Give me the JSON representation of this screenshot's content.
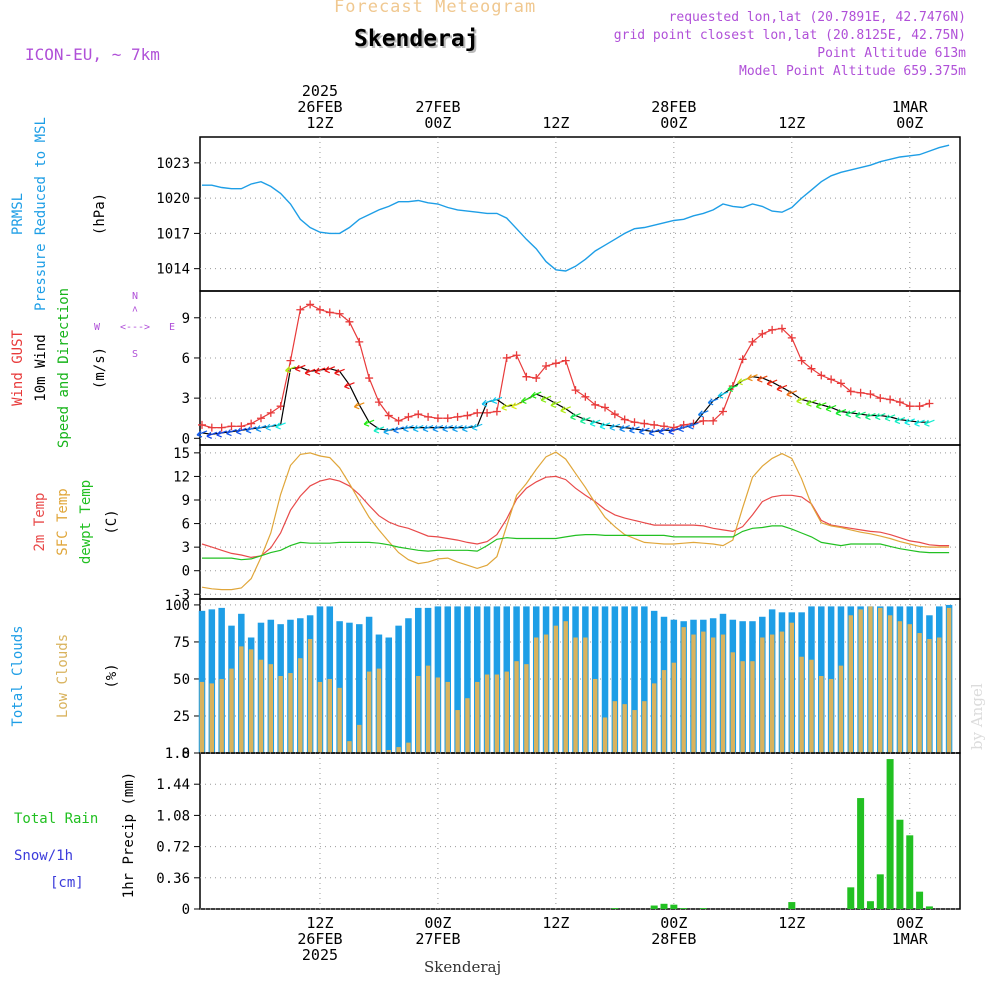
{
  "header": {
    "app_title": "Forecast Meteogram",
    "location": "Skenderaj",
    "model": "ICON-EU, ~ 7km",
    "requested": "requested lon,lat (20.7891E, 42.7476N)",
    "gridpoint": "grid point closest lon,lat (20.8125E, 42.75N)",
    "point_alt": "Point Altitude 613m",
    "model_alt": "Model Point Altitude 659.375m",
    "footer_location": "Skenderaj",
    "credit": "by Angel"
  },
  "colors": {
    "pressure": "#1e9ee6",
    "gust": "#e83a3a",
    "wind10m": "#000000",
    "wind_label": "#17b41a",
    "temp2m": "#e84a4a",
    "sfc": "#e0a63a",
    "dewpt": "#22c022",
    "total_clouds": "#1e9ee6",
    "low_clouds": "#d9b35e",
    "rain": "#22c022",
    "snow": "#3b3bdb",
    "header_purple": "#b050d8",
    "header_orange": "#f0c890",
    "compass": "#b050d8"
  },
  "time_axis": {
    "top_labels": [
      {
        "t": 12,
        "lines": [
          "2025",
          "26FEB",
          "12Z"
        ]
      },
      {
        "t": 24,
        "lines": [
          "27FEB",
          "00Z"
        ]
      },
      {
        "t": 36,
        "lines": [
          "12Z"
        ]
      },
      {
        "t": 48,
        "lines": [
          "28FEB",
          "00Z"
        ]
      },
      {
        "t": 60,
        "lines": [
          "12Z"
        ]
      },
      {
        "t": 72,
        "lines": [
          "1MAR",
          "00Z"
        ]
      }
    ],
    "bottom_labels": [
      {
        "t": 12,
        "lines": [
          "12Z",
          "26FEB",
          "2025"
        ]
      },
      {
        "t": 24,
        "lines": [
          "00Z",
          "27FEB"
        ]
      },
      {
        "t": 36,
        "lines": [
          "12Z"
        ]
      },
      {
        "t": 48,
        "lines": [
          "00Z",
          "28FEB"
        ]
      },
      {
        "t": 60,
        "lines": [
          "12Z"
        ]
      },
      {
        "t": 72,
        "lines": [
          "00Z",
          "1MAR"
        ]
      }
    ]
  },
  "chart_data": [
    {
      "type": "line",
      "panel": "pressure",
      "ylabel_lines": [
        "PRMSL",
        "Pressure Reduced to MSL",
        "(hPa)"
      ],
      "yticks": [
        1014,
        1017,
        1020,
        1023
      ],
      "ylim": [
        1012.1,
        1025.2
      ],
      "x_hours": [
        0,
        1,
        2,
        3,
        4,
        5,
        6,
        7,
        8,
        9,
        10,
        11,
        12,
        13,
        14,
        15,
        16,
        17,
        18,
        19,
        20,
        21,
        22,
        23,
        24,
        25,
        26,
        27,
        28,
        29,
        30,
        31,
        32,
        33,
        34,
        35,
        36,
        37,
        38,
        39,
        40,
        41,
        42,
        43,
        44,
        45,
        46,
        47,
        48,
        49,
        50,
        51,
        52,
        53,
        54,
        55,
        56,
        57,
        58,
        59,
        60,
        61,
        62,
        63,
        64,
        65,
        66,
        67,
        68,
        69,
        70,
        71,
        72,
        73,
        74,
        75,
        76
      ],
      "series": [
        {
          "values": [
            1021.1,
            1021.1,
            1020.9,
            1020.8,
            1020.8,
            1021.2,
            1021.4,
            1021.0,
            1020.4,
            1019.5,
            1018.2,
            1017.5,
            1017.1,
            1017.0,
            1017.0,
            1017.5,
            1018.2,
            1018.6,
            1019.0,
            1019.3,
            1019.7,
            1019.7,
            1019.8,
            1019.6,
            1019.5,
            1019.2,
            1019.0,
            1018.9,
            1018.8,
            1018.7,
            1018.7,
            1018.3,
            1017.4,
            1016.5,
            1015.7,
            1014.6,
            1013.9,
            1013.8,
            1014.2,
            1014.8,
            1015.5,
            1016.0,
            1016.5,
            1017.0,
            1017.4,
            1017.5,
            1017.7,
            1017.9,
            1018.1,
            1018.2,
            1018.5,
            1018.7,
            1019.0,
            1019.5,
            1019.3,
            1019.2,
            1019.5,
            1019.3,
            1018.9,
            1018.8,
            1019.2,
            1020.0,
            1020.7,
            1021.4,
            1021.9,
            1022.2,
            1022.4,
            1022.6,
            1022.8,
            1023.1,
            1023.3,
            1023.5,
            1023.6,
            1023.7,
            1024.0,
            1024.3,
            1024.5
          ]
        }
      ]
    },
    {
      "type": "line",
      "panel": "wind",
      "ylabel_lines": [
        "Wind GUST",
        "10m Wind",
        "Speed and Direction",
        "(m/s)"
      ],
      "compass": {
        "n": "N",
        "s": "S",
        "e": "E",
        "w": "W"
      },
      "yticks": [
        0,
        3,
        6,
        9
      ],
      "ylim": [
        -0.5,
        11.0
      ],
      "x_hours": [
        0,
        1,
        2,
        3,
        4,
        5,
        6,
        7,
        8,
        9,
        10,
        11,
        12,
        13,
        14,
        15,
        16,
        17,
        18,
        19,
        20,
        21,
        22,
        23,
        24,
        25,
        26,
        27,
        28,
        29,
        30,
        31,
        32,
        33,
        34,
        35,
        36,
        37,
        38,
        39,
        40,
        41,
        42,
        43,
        44,
        45,
        46,
        47,
        48,
        49,
        50,
        51,
        52,
        53,
        54,
        55,
        56,
        57,
        58,
        59,
        60,
        61,
        62,
        63,
        64,
        65,
        66,
        67,
        68,
        69,
        70,
        71,
        72,
        73,
        74,
        75,
        76
      ],
      "series": [
        {
          "name": "Wind GUST",
          "marker": "+",
          "values": [
            1.0,
            0.8,
            0.8,
            0.9,
            0.9,
            1.1,
            1.5,
            1.9,
            2.4,
            5.8,
            9.6,
            10.0,
            9.6,
            9.4,
            9.3,
            8.7,
            7.2,
            4.5,
            2.7,
            1.7,
            1.3,
            1.6,
            1.8,
            1.6,
            1.5,
            1.5,
            1.6,
            1.7,
            1.9,
            1.9,
            2.0,
            6.0,
            6.2,
            4.6,
            4.5,
            5.4,
            5.6,
            5.8,
            3.6,
            3.1,
            2.5,
            2.3,
            1.8,
            1.4,
            1.2,
            1.1,
            1.0,
            0.9,
            0.8,
            1.0,
            1.1,
            1.3,
            1.3,
            2.0,
            3.9,
            5.9,
            7.2,
            7.8,
            8.1,
            8.2,
            7.5,
            5.8,
            5.2,
            4.7,
            4.4,
            4.1,
            3.5,
            3.4,
            3.3,
            3.0,
            2.9,
            2.7,
            2.4,
            2.4,
            2.6
          ]
        },
        {
          "name": "10m Wind",
          "values": [
            0.4,
            0.3,
            0.4,
            0.5,
            0.6,
            0.7,
            0.8,
            0.9,
            1.0,
            5.2,
            5.3,
            5.0,
            5.1,
            5.2,
            5.0,
            4.0,
            2.5,
            1.2,
            0.7,
            0.6,
            0.7,
            0.8,
            0.8,
            0.8,
            0.8,
            0.8,
            0.8,
            0.8,
            0.9,
            2.7,
            2.9,
            2.4,
            2.5,
            2.9,
            3.3,
            3.0,
            2.6,
            2.2,
            1.7,
            1.4,
            1.2,
            1.0,
            0.9,
            0.8,
            0.7,
            0.6,
            0.5,
            0.6,
            0.6,
            0.8,
            1.0,
            1.9,
            2.8,
            3.3,
            3.8,
            4.3,
            4.6,
            4.5,
            4.2,
            3.8,
            3.4,
            2.9,
            2.7,
            2.5,
            2.3,
            2.0,
            1.9,
            1.8,
            1.7,
            1.7,
            1.6,
            1.4,
            1.3,
            1.2,
            1.2
          ]
        }
      ]
    },
    {
      "type": "line",
      "panel": "temperature",
      "ylabel_lines": [
        "2m Temp",
        "SFC Temp",
        "dewpt Temp",
        "(C)"
      ],
      "yticks": [
        -3,
        0,
        3,
        6,
        9,
        12,
        15
      ],
      "ylim": [
        -3.6,
        16.0
      ],
      "x_hours": [
        0,
        1,
        2,
        3,
        4,
        5,
        6,
        7,
        8,
        9,
        10,
        11,
        12,
        13,
        14,
        15,
        16,
        17,
        18,
        19,
        20,
        21,
        22,
        23,
        24,
        25,
        26,
        27,
        28,
        29,
        30,
        31,
        32,
        33,
        34,
        35,
        36,
        37,
        38,
        39,
        40,
        41,
        42,
        43,
        44,
        45,
        46,
        47,
        48,
        49,
        50,
        51,
        52,
        53,
        54,
        55,
        56,
        57,
        58,
        59,
        60,
        61,
        62,
        63,
        64,
        65,
        66,
        67,
        68,
        69,
        70,
        71,
        72,
        73,
        74,
        75,
        76
      ],
      "series": [
        {
          "name": "2m Temp",
          "values": [
            3.4,
            3.0,
            2.6,
            2.2,
            2.0,
            1.7,
            1.9,
            2.9,
            4.8,
            7.7,
            9.5,
            10.8,
            11.4,
            11.7,
            11.4,
            10.8,
            9.7,
            8.3,
            7.0,
            6.2,
            5.7,
            5.4,
            4.9,
            4.4,
            4.3,
            4.1,
            3.9,
            3.6,
            3.4,
            3.7,
            4.6,
            6.6,
            9.1,
            10.5,
            11.3,
            11.9,
            12.0,
            11.6,
            10.5,
            9.6,
            8.8,
            7.8,
            7.1,
            6.7,
            6.4,
            6.1,
            5.8,
            5.8,
            5.8,
            5.8,
            5.8,
            5.7,
            5.4,
            5.2,
            5.0,
            5.6,
            7.1,
            8.8,
            9.4,
            9.6,
            9.6,
            9.4,
            8.5,
            6.4,
            5.8,
            5.6,
            5.4,
            5.2,
            5.0,
            4.9,
            4.6,
            4.2,
            3.8,
            3.6,
            3.3,
            3.2,
            3.2
          ]
        },
        {
          "name": "SFC Temp",
          "values": [
            -2.1,
            -2.3,
            -2.4,
            -2.4,
            -2.2,
            -1.0,
            1.7,
            4.8,
            9.7,
            13.4,
            14.8,
            15.0,
            14.6,
            14.4,
            13.1,
            11.1,
            8.9,
            6.8,
            5.2,
            3.7,
            2.3,
            1.4,
            0.9,
            1.1,
            1.5,
            1.6,
            1.1,
            0.7,
            0.3,
            0.7,
            1.8,
            5.7,
            9.6,
            11.1,
            12.9,
            14.5,
            15.1,
            14.2,
            12.4,
            10.6,
            8.6,
            6.8,
            5.6,
            4.6,
            4.1,
            3.6,
            3.5,
            3.4,
            3.4,
            3.5,
            3.6,
            3.5,
            3.4,
            3.2,
            3.9,
            8.0,
            11.9,
            13.3,
            14.3,
            14.9,
            14.3,
            11.7,
            8.4,
            6.1,
            5.7,
            5.5,
            5.2,
            4.9,
            4.7,
            4.4,
            4.1,
            3.7,
            3.4,
            3.1,
            3.0,
            3.0,
            3.0
          ]
        },
        {
          "name": "dewpt Temp",
          "values": [
            1.6,
            1.6,
            1.6,
            1.6,
            1.4,
            1.5,
            1.9,
            2.3,
            2.6,
            3.2,
            3.6,
            3.5,
            3.5,
            3.5,
            3.6,
            3.6,
            3.6,
            3.6,
            3.5,
            3.3,
            3.0,
            2.8,
            2.6,
            2.5,
            2.6,
            2.6,
            2.6,
            2.6,
            2.5,
            3.2,
            4.0,
            4.2,
            4.1,
            4.1,
            4.1,
            4.1,
            4.1,
            4.3,
            4.5,
            4.6,
            4.6,
            4.5,
            4.5,
            4.5,
            4.5,
            4.5,
            4.5,
            4.5,
            4.3,
            4.3,
            4.3,
            4.3,
            4.3,
            4.3,
            4.3,
            5.0,
            5.4,
            5.5,
            5.7,
            5.7,
            5.3,
            4.8,
            4.3,
            3.6,
            3.4,
            3.2,
            3.4,
            3.4,
            3.4,
            3.4,
            3.1,
            2.8,
            2.6,
            2.4,
            2.3,
            2.3,
            2.3
          ]
        }
      ]
    },
    {
      "type": "bar",
      "panel": "clouds",
      "ylabel_lines": [
        "Total Clouds",
        "Low Clouds",
        "(%)"
      ],
      "yticks": [
        0,
        25,
        50,
        75,
        100
      ],
      "ylim": [
        0,
        104
      ],
      "x_hours": [
        0,
        1,
        2,
        3,
        4,
        5,
        6,
        7,
        8,
        9,
        10,
        11,
        12,
        13,
        14,
        15,
        16,
        17,
        18,
        19,
        20,
        21,
        22,
        23,
        24,
        25,
        26,
        27,
        28,
        29,
        30,
        31,
        32,
        33,
        34,
        35,
        36,
        37,
        38,
        39,
        40,
        41,
        42,
        43,
        44,
        45,
        46,
        47,
        48,
        49,
        50,
        51,
        52,
        53,
        54,
        55,
        56,
        57,
        58,
        59,
        60,
        61,
        62,
        63,
        64,
        65,
        66,
        67,
        68,
        69,
        70,
        71,
        72,
        73,
        74,
        75,
        76
      ],
      "series": [
        {
          "name": "Total Clouds",
          "values": [
            96,
            97,
            98,
            86,
            94,
            78,
            88,
            90,
            87,
            90,
            91,
            93,
            99,
            99,
            89,
            88,
            87,
            92,
            80,
            78,
            86,
            91,
            98,
            98,
            99,
            99,
            99,
            99,
            99,
            99,
            99,
            99,
            99,
            99,
            99,
            99,
            99,
            99,
            99,
            99,
            99,
            99,
            99,
            99,
            99,
            99,
            96,
            92,
            90,
            89,
            90,
            90,
            91,
            94,
            90,
            89,
            89,
            92,
            97,
            95,
            95,
            95,
            99,
            99,
            99,
            99,
            99,
            99,
            99,
            99,
            99,
            99,
            99,
            99,
            93,
            99,
            100
          ]
        },
        {
          "name": "Low Clouds",
          "values": [
            48,
            47,
            50,
            57,
            72,
            70,
            63,
            60,
            52,
            54,
            64,
            77,
            48,
            50,
            44,
            8,
            19,
            55,
            57,
            2,
            4,
            7,
            52,
            59,
            51,
            48,
            29,
            37,
            48,
            53,
            53,
            55,
            62,
            60,
            78,
            80,
            86,
            89,
            78,
            78,
            50,
            24,
            35,
            33,
            29,
            35,
            47,
            56,
            61,
            85,
            80,
            82,
            78,
            80,
            68,
            62,
            62,
            78,
            80,
            82,
            88,
            65,
            63,
            52,
            50,
            59,
            93,
            97,
            99,
            98,
            93,
            89,
            87,
            81,
            77,
            78,
            98
          ]
        }
      ]
    },
    {
      "type": "bar",
      "panel": "precip",
      "ylabel_lines": [
        "Total Rain",
        "Snow/1h",
        "[cm]",
        "1hr Precip (mm)"
      ],
      "yticks": [
        0,
        0.36,
        0.72,
        1.08,
        1.44,
        1.8
      ],
      "ylim": [
        0,
        1.8
      ],
      "series": [
        {
          "name": "Total Rain",
          "x": [
            42,
            46,
            47,
            48,
            49,
            51,
            60,
            66,
            67,
            68,
            69,
            70,
            71,
            72,
            73,
            74
          ],
          "values": [
            0.01,
            0.04,
            0.06,
            0.05,
            0.01,
            0.01,
            0.08,
            0.25,
            1.28,
            0.09,
            0.4,
            1.73,
            1.03,
            0.85,
            0.2,
            0.03
          ]
        }
      ]
    }
  ]
}
